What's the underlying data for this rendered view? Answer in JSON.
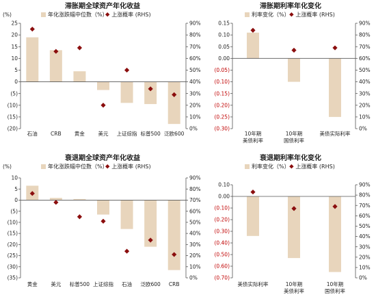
{
  "colors": {
    "bar": "#e8d5bc",
    "marker": "#8b0e0e",
    "axis": "#555555",
    "neg": "#c00000"
  },
  "chart_data": [
    {
      "id": "stag-assets",
      "type": "bar",
      "title": "滞胀期全球资产年化收益",
      "unit_label": "(%)",
      "legend": [
        "年化涨跌幅中位数（%）",
        "上涨概率 (RHS)"
      ],
      "categories": [
        "石油",
        "CRB",
        "黄金",
        "美元",
        "上证综指",
        "标普500",
        "泛欧600"
      ],
      "series": [
        {
          "name": "年化涨跌幅中位数（%）",
          "axis": "left",
          "values": [
            19,
            13.5,
            4.5,
            -3.5,
            -9,
            -9.5,
            -18
          ]
        },
        {
          "name": "上涨概率 (RHS)",
          "axis": "right",
          "values": [
            85,
            66,
            69,
            20,
            50,
            34,
            29
          ]
        }
      ],
      "ylim": [
        -20,
        25
      ],
      "yticks": [
        25,
        20,
        15,
        10,
        5,
        0,
        -5,
        -10,
        -15,
        -20
      ],
      "ytick_labels": [
        "25",
        "20",
        "15",
        "10",
        "5",
        "0",
        "(5)",
        "(10)",
        "(15)",
        "(20)"
      ],
      "y2lim": [
        0,
        90
      ],
      "y2ticks": [
        90,
        80,
        70,
        60,
        50,
        40,
        30,
        20,
        10,
        0
      ],
      "y2tick_labels": [
        "90%",
        "80%",
        "70%",
        "60%",
        "50%",
        "40%",
        "30%",
        "20%",
        "10%",
        "0%"
      ]
    },
    {
      "id": "stag-rates",
      "type": "bar",
      "title": "滞胀期利率年化变化",
      "unit_label": "",
      "legend": [
        "利率变化（%）",
        "上涨概率 (RHS)"
      ],
      "categories": [
        "10年期\n美债利率",
        "10年期\n国债利率",
        "美债实际利率"
      ],
      "series": [
        {
          "name": "利率变化（%）",
          "axis": "left",
          "values": [
            0.11,
            -0.1,
            -0.25
          ]
        },
        {
          "name": "上涨概率 (RHS)",
          "axis": "right",
          "values": [
            84,
            67,
            69
          ]
        }
      ],
      "ylim": [
        -0.3,
        0.15
      ],
      "yticks": [
        0.15,
        0.1,
        0.05,
        0.0,
        -0.05,
        -0.1,
        -0.15,
        -0.2,
        -0.25,
        -0.3
      ],
      "ytick_labels": [
        "0.15",
        "0.10",
        "0.05",
        "0.00",
        "(0.05)",
        "(0.10)",
        "(0.15)",
        "(0.20)",
        "(0.25)",
        "(0.30)"
      ],
      "y2lim": [
        0,
        90
      ],
      "y2ticks": [
        90,
        80,
        70,
        60,
        50,
        40,
        30,
        20,
        10,
        0
      ],
      "y2tick_labels": [
        "90%",
        "80%",
        "70%",
        "60%",
        "50%",
        "40%",
        "30%",
        "20%",
        "10%",
        "0%"
      ]
    },
    {
      "id": "rec-assets",
      "type": "bar",
      "title": "衰退期全球资产年化收益",
      "unit_label": "(%)",
      "legend": [
        "年化涨跌幅中位数（%）",
        "上涨概率 (RHS)"
      ],
      "categories": [
        "黄金",
        "美元",
        "标普500",
        "上证综指",
        "石油",
        "泛欧600",
        "CRB"
      ],
      "series": [
        {
          "name": "年化涨跌幅中位数（%）",
          "axis": "left",
          "values": [
            6.5,
            1,
            0.5,
            -6.5,
            -13,
            -21,
            -31.5
          ]
        },
        {
          "name": "上涨概率 (RHS)",
          "axis": "right",
          "values": [
            76,
            68,
            55,
            51,
            24,
            34,
            21
          ]
        }
      ],
      "ylim": [
        -35,
        10
      ],
      "yticks": [
        10,
        5,
        0,
        -5,
        -10,
        -15,
        -20,
        -25,
        -30,
        -35
      ],
      "ytick_labels": [
        "10",
        "5",
        "0",
        "(5)",
        "(10)",
        "(15)",
        "(20)",
        "(25)",
        "(30)",
        "(35)"
      ],
      "y2lim": [
        0,
        90
      ],
      "y2ticks": [
        90,
        80,
        70,
        60,
        50,
        40,
        30,
        20,
        10,
        0
      ],
      "y2tick_labels": [
        "90%",
        "80%",
        "70%",
        "60%",
        "50%",
        "40%",
        "30%",
        "20%",
        "10%",
        "0%"
      ]
    },
    {
      "id": "rec-rates",
      "type": "bar",
      "title": "衰退期利率年化变化",
      "unit_label": "",
      "legend": [
        "利率变化（%）",
        "上涨概率 (RHS)"
      ],
      "categories": [
        "美债实际利率",
        "10年期\n美债利率",
        "10年期\n国债利率"
      ],
      "series": [
        {
          "name": "利率变化（%）",
          "axis": "left",
          "values": [
            -0.34,
            -0.53,
            -0.65
          ]
        },
        {
          "name": "上涨概率 (RHS)",
          "axis": "right",
          "values": [
            83,
            67,
            69
          ]
        }
      ],
      "ylim": [
        -0.7,
        0.1
      ],
      "yticks": [
        0.1,
        0.0,
        -0.1,
        -0.2,
        -0.3,
        -0.4,
        -0.5,
        -0.6,
        -0.7
      ],
      "ytick_labels": [
        "0.10",
        "0.00",
        "(0.10)",
        "(0.20)",
        "(0.30)",
        "(0.40)",
        "(0.50)",
        "(0.60)",
        "(0.70)"
      ],
      "y2lim": [
        0,
        90
      ],
      "y2ticks": [
        90,
        80,
        70,
        60,
        50,
        40,
        30,
        20,
        10,
        0
      ],
      "y2tick_labels": [
        "90%",
        "80%",
        "70%",
        "60%",
        "50%",
        "40%",
        "30%",
        "20%",
        "10%",
        "0%"
      ]
    }
  ]
}
